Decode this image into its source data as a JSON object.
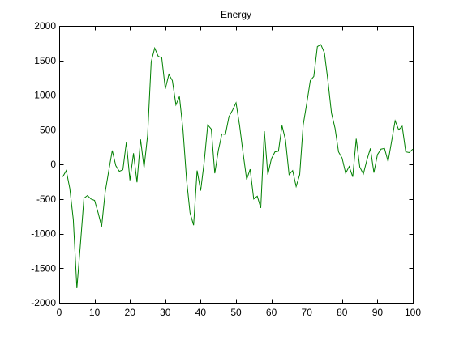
{
  "chart_data": {
    "type": "line",
    "title": "Energy",
    "xlabel": "",
    "ylabel": "",
    "xlim": [
      0,
      100
    ],
    "ylim": [
      -2000,
      2000
    ],
    "xticks": [
      0,
      10,
      20,
      30,
      40,
      50,
      60,
      70,
      80,
      90,
      100
    ],
    "yticks": [
      -2000,
      -1500,
      -1000,
      -500,
      0,
      500,
      1000,
      1500,
      2000
    ],
    "grid": false,
    "series": [
      {
        "color": "#008000",
        "x": [
          1,
          2,
          3,
          4,
          5,
          6,
          7,
          8,
          9,
          10,
          11,
          12,
          13,
          14,
          15,
          16,
          17,
          18,
          19,
          20,
          21,
          22,
          23,
          24,
          25,
          26,
          27,
          28,
          29,
          30,
          31,
          32,
          33,
          34,
          35,
          36,
          37,
          38,
          39,
          40,
          41,
          42,
          43,
          44,
          45,
          46,
          47,
          48,
          49,
          50,
          51,
          52,
          53,
          54,
          55,
          56,
          57,
          58,
          59,
          60,
          61,
          62,
          63,
          64,
          65,
          66,
          67,
          68,
          69,
          70,
          71,
          72,
          73,
          74,
          75,
          76,
          77,
          78,
          79,
          80,
          81,
          82,
          83,
          84,
          85,
          86,
          87,
          88,
          89,
          90,
          91,
          92,
          93,
          94,
          95,
          96,
          97,
          98,
          99,
          100
        ],
        "y": [
          -180,
          -90,
          -350,
          -800,
          -1790,
          -1150,
          -490,
          -450,
          -500,
          -520,
          -700,
          -900,
          -400,
          -100,
          200,
          -20,
          -100,
          -80,
          320,
          -230,
          160,
          -260,
          360,
          -50,
          420,
          1480,
          1680,
          1560,
          1540,
          1090,
          1300,
          1210,
          860,
          980,
          500,
          -220,
          -700,
          -880,
          -90,
          -380,
          40,
          570,
          510,
          -130,
          200,
          440,
          430,
          690,
          780,
          890,
          560,
          160,
          -220,
          -70,
          -500,
          -460,
          -630,
          480,
          -150,
          80,
          180,
          190,
          560,
          350,
          -150,
          -90,
          -320,
          -150,
          570,
          880,
          1210,
          1270,
          1700,
          1730,
          1610,
          1200,
          740,
          520,
          180,
          90,
          -130,
          -30,
          -180,
          370,
          -40,
          -140,
          60,
          230,
          -120,
          140,
          220,
          230,
          40,
          330,
          630,
          500,
          550,
          180,
          170,
          220
        ]
      }
    ]
  }
}
